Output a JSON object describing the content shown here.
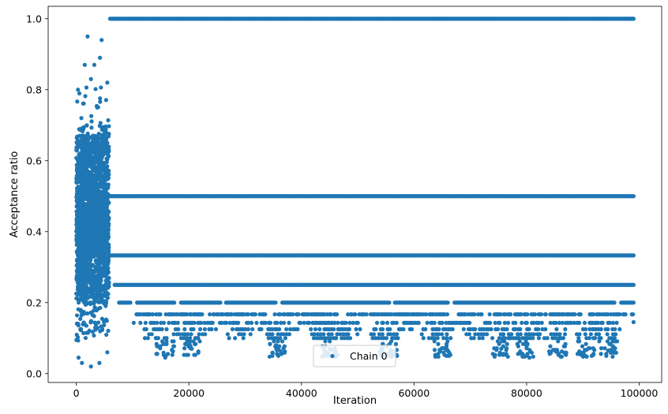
{
  "chart_data": {
    "type": "scatter",
    "title": "",
    "xlabel": "Iteration",
    "ylabel": "Acceptance ratio",
    "xlim": [
      -5000,
      104000
    ],
    "ylim": [
      -0.025,
      1.035
    ],
    "xticks": [
      0,
      20000,
      40000,
      60000,
      80000,
      100000
    ],
    "yticks": [
      0.0,
      0.2,
      0.4,
      0.6,
      0.8,
      1.0
    ],
    "xtick_labels": [
      "0",
      "20000",
      "40000",
      "60000",
      "80000",
      "100000"
    ],
    "ytick_labels": [
      "0.0",
      "0.2",
      "0.4",
      "0.6",
      "0.8",
      "1.0"
    ],
    "grid": false,
    "legend": {
      "placement": "lower-center"
    },
    "series": [
      {
        "name": "Chain 0",
        "color": "#1f77b4",
        "marker": "circle",
        "burn_in_iterations": [
          0,
          6000
        ],
        "burn_in_value_range": [
          0.02,
          0.95
        ],
        "plateau_levels": [
          1.0,
          0.5,
          0.333,
          0.25,
          0.2,
          0.167,
          0.143,
          0.125,
          0.111,
          0.1
        ],
        "plateau_iterations": [
          6000,
          99000
        ],
        "sample_points": [
          {
            "x": 2000,
            "y": 0.95
          },
          {
            "x": 4500,
            "y": 0.94
          },
          {
            "x": 4200,
            "y": 0.89
          },
          {
            "x": 1500,
            "y": 0.87
          },
          {
            "x": 3200,
            "y": 0.87
          },
          {
            "x": 2600,
            "y": 0.83
          },
          {
            "x": 300,
            "y": 0.8
          },
          {
            "x": 5500,
            "y": 0.82
          },
          {
            "x": 3700,
            "y": 0.75
          },
          {
            "x": 900,
            "y": 0.72
          },
          {
            "x": 1000,
            "y": 0.03
          },
          {
            "x": 2600,
            "y": 0.02
          },
          {
            "x": 4100,
            "y": 0.03
          },
          {
            "x": 400,
            "y": 0.045
          },
          {
            "x": 5500,
            "y": 0.06
          },
          {
            "x": 15800,
            "y": 0.045
          },
          {
            "x": 20500,
            "y": 0.07
          },
          {
            "x": 35500,
            "y": 0.08
          },
          {
            "x": 45000,
            "y": 0.07
          },
          {
            "x": 55500,
            "y": 0.08
          },
          {
            "x": 75500,
            "y": 0.07
          },
          {
            "x": 79500,
            "y": 0.05
          },
          {
            "x": 80500,
            "y": 0.045
          },
          {
            "x": 85500,
            "y": 0.06
          },
          {
            "x": 90500,
            "y": 0.05
          },
          {
            "x": 94500,
            "y": 0.065
          },
          {
            "x": 99000,
            "y": 0.145
          }
        ]
      }
    ]
  }
}
